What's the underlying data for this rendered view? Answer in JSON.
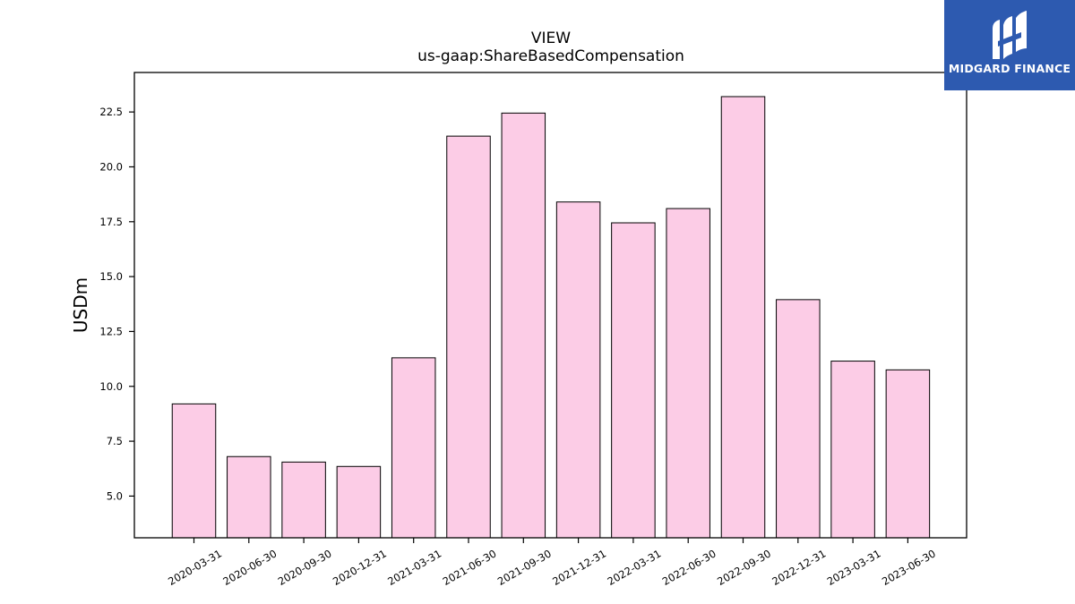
{
  "logo": {
    "text": "MIDGARD FINANCE",
    "background": "#2d5ab0"
  },
  "chart_data": {
    "type": "bar",
    "title": "VIEW",
    "subtitle": "us-gaap:ShareBasedCompensation",
    "xlabel": "",
    "ylabel": "USDm",
    "categories": [
      "2020-03-31",
      "2020-06-30",
      "2020-09-30",
      "2020-12-31",
      "2021-03-31",
      "2021-06-30",
      "2021-09-30",
      "2021-12-31",
      "2022-03-31",
      "2022-06-30",
      "2022-09-30",
      "2022-12-31",
      "2023-03-31",
      "2023-06-30"
    ],
    "values": [
      9.2,
      6.8,
      6.55,
      6.35,
      11.3,
      21.4,
      22.45,
      18.4,
      17.45,
      18.1,
      23.2,
      13.95,
      11.15,
      10.75
    ],
    "ylim": [
      3.1,
      24.3
    ],
    "yticks": [
      5.0,
      7.5,
      10.0,
      12.5,
      15.0,
      17.5,
      20.0,
      22.5
    ],
    "bar_color": "#fccce6",
    "bar_edge_color": "#000000",
    "grid": false,
    "legend": "none"
  }
}
